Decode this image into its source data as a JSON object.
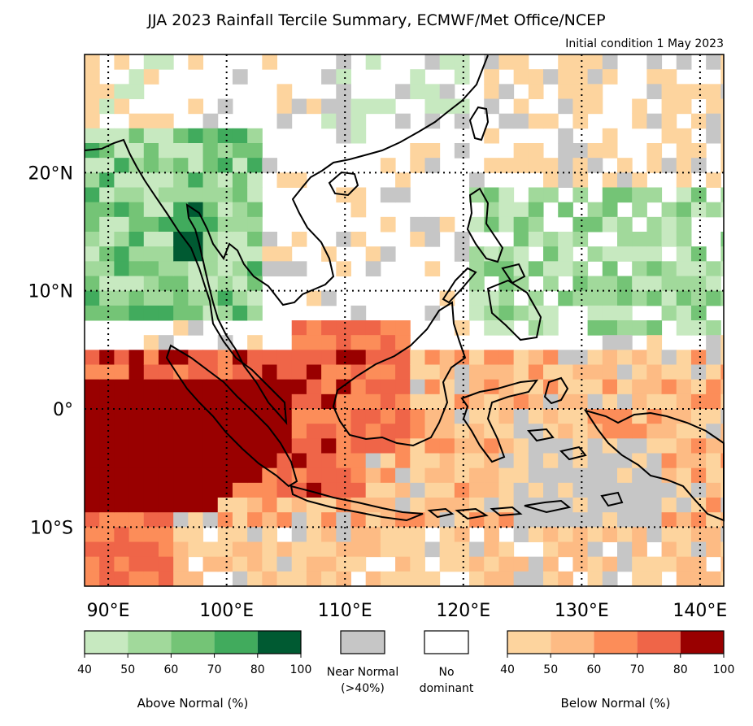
{
  "title": "JJA 2023 Rainfall Tercile Summary, ECMWF/Met Office/NCEP",
  "subtitle": "Initial condition 1 May 2023",
  "map": {
    "lon_range": [
      88,
      142
    ],
    "lat_range": [
      -15,
      30
    ],
    "lon_ticks": [
      {
        "value": 90,
        "label": "90°E"
      },
      {
        "value": 100,
        "label": "100°E"
      },
      {
        "value": 110,
        "label": "110°E"
      },
      {
        "value": 120,
        "label": "120°E"
      },
      {
        "value": 130,
        "label": "130°E"
      },
      {
        "value": 140,
        "label": "140°E"
      }
    ],
    "lat_ticks": [
      {
        "value": 20,
        "label": "20°N"
      },
      {
        "value": 10,
        "label": "10°N"
      },
      {
        "value": 0,
        "label": "0°"
      },
      {
        "value": -10,
        "label": "10°S"
      }
    ],
    "gridlines": "dotted"
  },
  "colors": {
    "above": [
      "#c7e9c0",
      "#a1d99b",
      "#74c476",
      "#41ab5d",
      "#005a32"
    ],
    "near_normal": "#c6c6c6",
    "no_dominant": "#ffffff",
    "below": [
      "#fdd49e",
      "#fdbb84",
      "#fc8d59",
      "#ef6548",
      "#990000"
    ],
    "coast": "#000000"
  },
  "legend": {
    "above": {
      "title": "Above Normal (%)",
      "ticks": [
        "40",
        "50",
        "60",
        "70",
        "80",
        "100"
      ]
    },
    "near": {
      "line1": "Near Normal",
      "line2": "(>40%)"
    },
    "nodom": {
      "line1": "No",
      "line2": "dominant"
    },
    "below": {
      "title": "Below Normal (%)",
      "ticks": [
        "40",
        "50",
        "60",
        "70",
        "80",
        "100"
      ]
    }
  }
}
